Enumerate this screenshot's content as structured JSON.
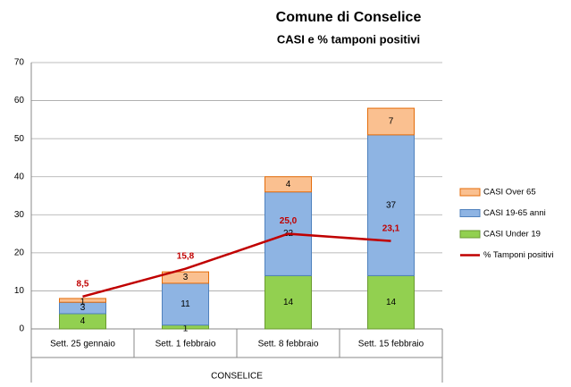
{
  "chart_data": {
    "type": "stacked-bar-line",
    "title": "Comune di Conselice",
    "subtitle": "CASI  e % tamponi positivi",
    "categories": [
      "Sett. 25 gennaio",
      "Sett. 1 febbraio",
      "Sett. 8 febbraio",
      "Sett. 15 febbraio"
    ],
    "group_label": "CONSELICE",
    "series": [
      {
        "name": "CASI Under 19",
        "type": "bar",
        "color": "#92d050",
        "values": [
          4,
          1,
          14,
          14
        ]
      },
      {
        "name": "CASI 19-65 anni",
        "type": "bar",
        "color": "#8eb4e3",
        "values": [
          3,
          11,
          22,
          37
        ]
      },
      {
        "name": "CASI Over 65",
        "type": "bar",
        "color": "#fac090",
        "values": [
          1,
          3,
          4,
          7
        ]
      },
      {
        "name": "% Tamponi positivi",
        "type": "line",
        "color": "#c00000",
        "values": [
          8.5,
          15.8,
          25.0,
          23.1
        ],
        "value_labels": [
          "8,5",
          "15,8",
          "25,0",
          "23,1"
        ]
      }
    ],
    "ylim": [
      0,
      70
    ],
    "yticks": [
      0,
      10,
      20,
      30,
      40,
      50,
      60,
      70
    ],
    "grid": true,
    "legend": "right"
  }
}
